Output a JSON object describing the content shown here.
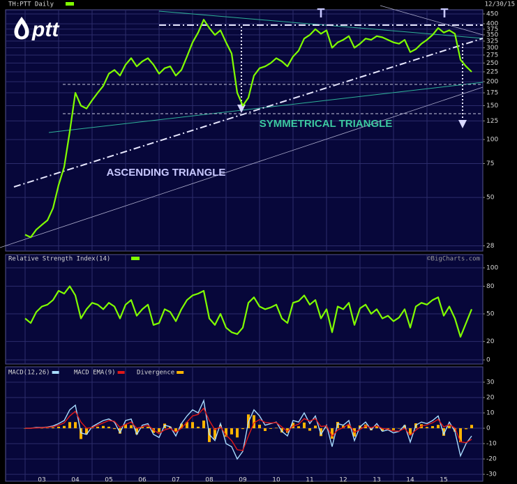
{
  "logo": "ptt",
  "chart_data": [
    {
      "type": "line",
      "title": "TH:PTT Daily",
      "subtitle": "12/30/15",
      "log_scale": true,
      "grid": true,
      "color": "#80ff00",
      "annotations": [
        "T",
        "T",
        "SYMMETRICAL TRIANGLE",
        "ASCENDING TRIANGLE"
      ],
      "ylim": [
        26.3,
        473
      ],
      "yticks": [
        28,
        50,
        75,
        100,
        125,
        150,
        175,
        200,
        225,
        250,
        275,
        300,
        325,
        350,
        375,
        400,
        450
      ],
      "values": [
        32,
        31,
        34,
        36,
        38,
        44,
        58,
        72,
        110,
        175,
        150,
        145,
        160,
        175,
        190,
        220,
        230,
        215,
        245,
        265,
        240,
        255,
        265,
        245,
        220,
        235,
        240,
        215,
        230,
        270,
        320,
        360,
        420,
        380,
        350,
        370,
        320,
        280,
        175,
        150,
        165,
        215,
        235,
        240,
        250,
        265,
        255,
        240,
        270,
        290,
        335,
        350,
        375,
        355,
        370,
        300,
        320,
        330,
        345,
        300,
        315,
        335,
        330,
        345,
        340,
        330,
        320,
        315,
        330,
        285,
        295,
        315,
        330,
        350,
        380,
        360,
        370,
        355,
        260,
        240,
        225
      ]
    },
    {
      "type": "line",
      "title": "Relative Strength Index(14)",
      "watermark": "©BigCharts.com",
      "grid": true,
      "color": "#80ff00",
      "ylim": [
        -4.5,
        114.4
      ],
      "yticks": [
        0,
        20,
        50,
        80,
        100
      ],
      "values": [
        45,
        40,
        52,
        58,
        60,
        65,
        75,
        72,
        80,
        70,
        45,
        55,
        62,
        60,
        55,
        62,
        58,
        45,
        60,
        65,
        48,
        55,
        60,
        38,
        40,
        55,
        52,
        42,
        55,
        65,
        70,
        72,
        75,
        45,
        38,
        50,
        35,
        30,
        28,
        35,
        62,
        68,
        58,
        55,
        57,
        60,
        45,
        40,
        62,
        64,
        70,
        60,
        65,
        45,
        55,
        30,
        58,
        55,
        62,
        38,
        56,
        60,
        50,
        55,
        45,
        48,
        42,
        46,
        55,
        35,
        58,
        62,
        60,
        65,
        68,
        48,
        58,
        45,
        25,
        40,
        55
      ]
    },
    {
      "type": "line",
      "grid": true,
      "ylim": [
        -34.5,
        40
      ],
      "yticks": [
        -30,
        -20,
        -10,
        0,
        10,
        20,
        30
      ],
      "categories": [
        null,
        null,
        null,
        "03",
        null,
        null,
        null,
        null,
        null,
        "04",
        null,
        null,
        null,
        null,
        null,
        "05",
        null,
        null,
        null,
        null,
        null,
        "06",
        null,
        null,
        null,
        null,
        null,
        "07",
        null,
        null,
        null,
        null,
        null,
        "08",
        null,
        null,
        null,
        null,
        null,
        "09",
        null,
        null,
        null,
        null,
        null,
        "10",
        null,
        null,
        null,
        null,
        null,
        "11",
        null,
        null,
        null,
        null,
        null,
        "12",
        null,
        null,
        null,
        null,
        null,
        "13",
        null,
        null,
        null,
        null,
        null,
        "14",
        null,
        null,
        null,
        null,
        null,
        "15",
        null,
        null,
        null,
        null,
        null
      ],
      "series": [
        {
          "name": "Divergence",
          "type": "bar",
          "color": "#ffb400",
          "values": [
            0,
            0,
            0.3,
            0.1,
            0.2,
            0.5,
            1,
            1.5,
            4,
            4,
            -7,
            -4,
            0.5,
            1,
            1.5,
            1,
            -0.5,
            -3.5,
            2.5,
            2,
            -4,
            1,
            1,
            -3,
            -2.5,
            3,
            1,
            -2.5,
            3,
            4,
            4,
            1,
            5,
            -9,
            -7,
            2,
            -5.5,
            -4,
            -6,
            -0.5,
            9,
            8.5,
            2.3,
            -1.8,
            -0.4,
            0.3,
            -2.8,
            -2.9,
            3.6,
            1.3,
            3.7,
            -1.6,
            1.7,
            -5.1,
            0.4,
            -6.8,
            4.1,
            1.6,
            2.3,
            -5.4,
            1.8,
            2.4,
            -1.3,
            1.4,
            -1.8,
            -0.4,
            -1.2,
            -0.1,
            2,
            -4.5,
            3.2,
            2.6,
            0.8,
            1.4,
            2.2,
            -4.9,
            1.6,
            -2.2,
            -9.1,
            -0.6,
            2.2
          ]
        },
        {
          "name": "MACD(12,26)",
          "type": "line",
          "color": "#a8dcff",
          "values": [
            0,
            0,
            0.5,
            0.5,
            0.8,
            1.5,
            3,
            5,
            12,
            15,
            -3,
            -4,
            1,
            3,
            5,
            6,
            4,
            -3,
            5,
            6,
            -4,
            2,
            3,
            -4,
            -6,
            2,
            1,
            -5,
            3,
            8,
            12,
            10,
            18,
            -4,
            -8,
            3,
            -10,
            -12,
            -20,
            -15,
            4,
            12,
            8,
            2,
            3,
            4,
            -2,
            -5,
            5,
            4,
            10,
            3,
            8,
            -4,
            2,
            -12,
            3,
            2,
            5,
            -8,
            1,
            4,
            -1,
            3,
            -2,
            -1,
            -3,
            -2,
            2,
            -9,
            2,
            4,
            3,
            5,
            8,
            -4,
            4,
            -2,
            -18,
            -10,
            -5
          ]
        },
        {
          "name": "MACD EMA(9)",
          "type": "line",
          "color": "#e01818",
          "values": [
            0,
            0,
            0.2,
            0.4,
            0.6,
            1,
            2,
            3.5,
            8,
            11,
            4,
            0,
            0.5,
            2,
            3.5,
            5,
            4.5,
            0.5,
            2.5,
            4,
            0,
            1,
            2,
            -1,
            -3.5,
            -1,
            0,
            -2.5,
            0,
            4,
            8,
            9,
            13,
            5,
            -1,
            1,
            -4.5,
            -8,
            -14,
            -14.5,
            -5,
            3.5,
            5.7,
            3.8,
            3.4,
            3.7,
            0.8,
            -2.1,
            1.4,
            2.7,
            6.3,
            4.6,
            6.3,
            1.1,
            1.6,
            -5.2,
            -1.1,
            0.4,
            2.7,
            -2.6,
            -0.8,
            1.6,
            0.3,
            1.6,
            -0.2,
            -0.6,
            -1.8,
            -1.9,
            0,
            -4.5,
            -1.2,
            1.4,
            2.2,
            3.6,
            5.8,
            0.9,
            2.4,
            0.2,
            -8.9,
            -9.4,
            -7.2
          ]
        }
      ]
    }
  ]
}
